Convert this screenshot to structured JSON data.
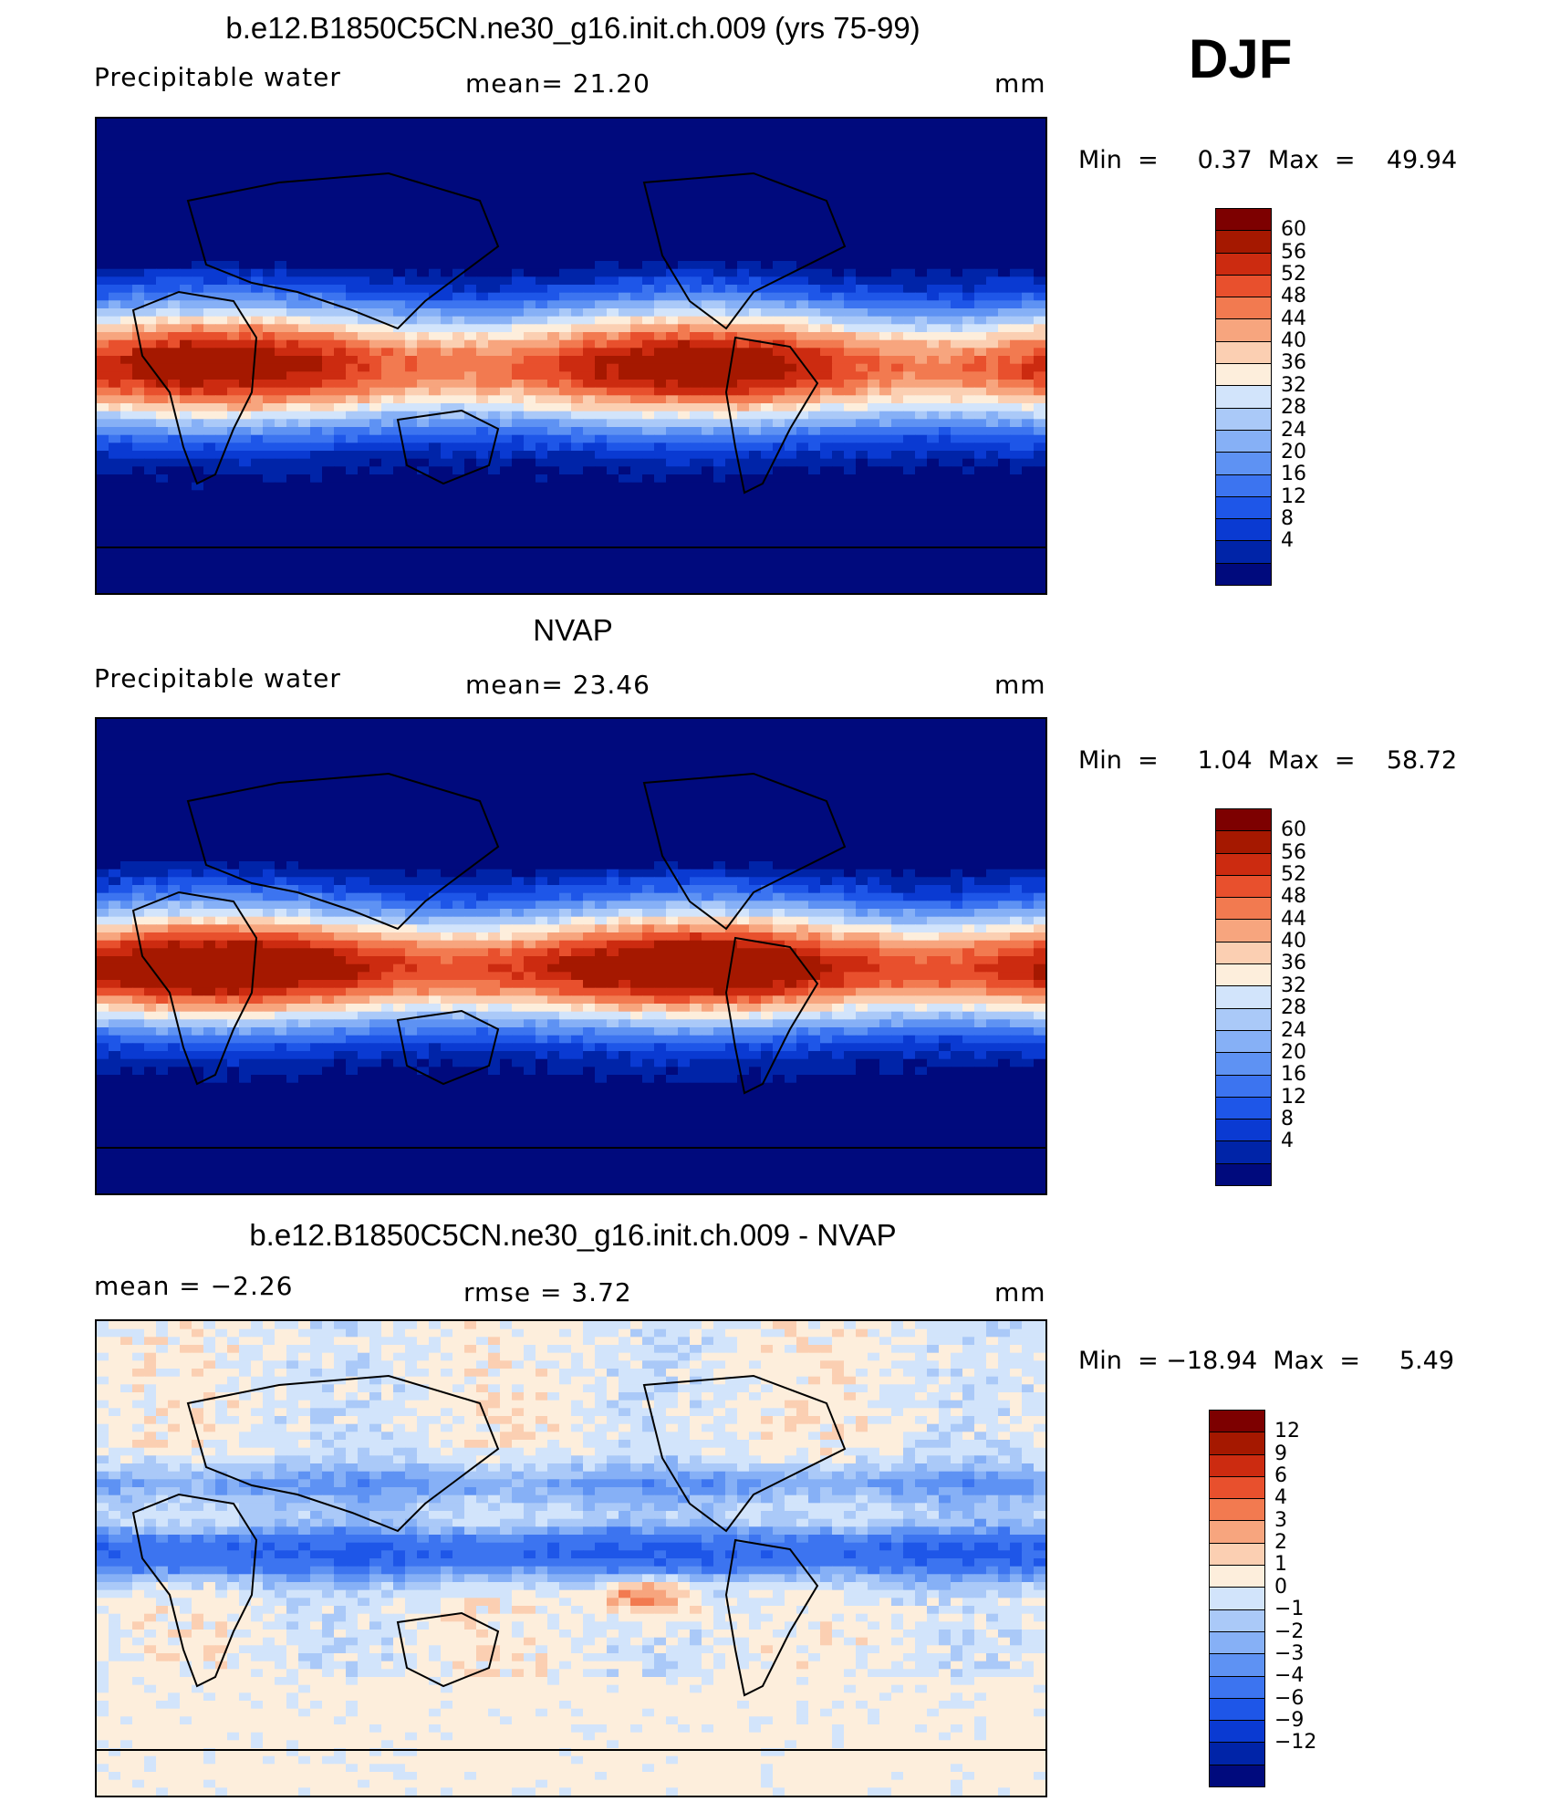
{
  "season": "DJF",
  "palettes": {
    "absolute": [
      "#000a7d",
      "#0024a8",
      "#0a3ad2",
      "#1e56e8",
      "#3c74f0",
      "#5e92f3",
      "#86b0f6",
      "#aac9f8",
      "#d2e4fb",
      "#fdeedc",
      "#fbcfb2",
      "#f7a57e",
      "#f27a50",
      "#e8502d",
      "#cc2b10",
      "#a51800",
      "#7d0000"
    ],
    "difference": [
      "#000a7d",
      "#0024a8",
      "#0a3ad2",
      "#1e56e8",
      "#3c74f0",
      "#5e92f3",
      "#86b0f6",
      "#aac9f8",
      "#d2e4fb",
      "#fdeedc",
      "#fbcfb2",
      "#f7a57e",
      "#f27a50",
      "#e8502d",
      "#cc2b10",
      "#a51800",
      "#7d0000"
    ]
  },
  "panels": [
    {
      "title": "b.e12.B1850C5CN.ne30_g16.init.ch.009 (yrs 75-99)",
      "left_label": "Precipitable  water",
      "mid_label": "mean=   21.20",
      "units": "mm",
      "minmax": "Min  =     0.37  Max  =    49.94",
      "colorbar_levels": [
        "60",
        "56",
        "52",
        "48",
        "44",
        "40",
        "36",
        "32",
        "28",
        "24",
        "20",
        "16",
        "12",
        "8",
        "4"
      ],
      "field_type": "model",
      "palette": "absolute"
    },
    {
      "title": "NVAP",
      "left_label": "Precipitable  water",
      "mid_label": "mean=   23.46",
      "units": "mm",
      "minmax": "Min  =     1.04  Max  =    58.72",
      "colorbar_levels": [
        "60",
        "56",
        "52",
        "48",
        "44",
        "40",
        "36",
        "32",
        "28",
        "24",
        "20",
        "16",
        "12",
        "8",
        "4"
      ],
      "field_type": "obs",
      "palette": "absolute"
    },
    {
      "title": "b.e12.B1850C5CN.ne30_g16.init.ch.009 - NVAP",
      "left_label": "mean  =    −2.26",
      "mid_label": "rmse  =      3.72",
      "units": "mm",
      "minmax": "Min  = −18.94  Max  =     5.49",
      "colorbar_levels": [
        "12",
        "9",
        "6",
        "4",
        "3",
        "2",
        "1",
        "0",
        "−1",
        "−2",
        "−3",
        "−4",
        "−6",
        "−9",
        "−12"
      ],
      "field_type": "diff",
      "palette": "difference"
    }
  ]
}
